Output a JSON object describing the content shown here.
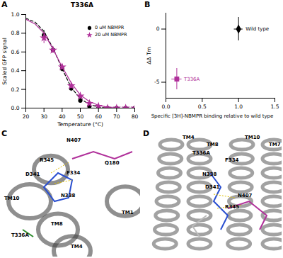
{
  "chart_data": [
    {
      "panel": "A",
      "type": "scatter",
      "title": "T336A",
      "x_label": "Temperature (°C)",
      "y_label": "Scaled GFP signal",
      "x": [
        30,
        35,
        40,
        45,
        50,
        55,
        60,
        65,
        70,
        75,
        80
      ],
      "series": [
        {
          "name": "0 uM NBMPR",
          "color": "#000000",
          "marker": "circle",
          "line_style": "dashed",
          "values": [
            0.78,
            0.62,
            0.42,
            0.21,
            0.08,
            0.02,
            0.0,
            0.0,
            0.0,
            0.0,
            0.0
          ],
          "errors": [
            0.05,
            0.03,
            0.03,
            0.03,
            0.02,
            0.01,
            0.01,
            0.01,
            0.0,
            0.0,
            0.0
          ],
          "fit_x": [
            20,
            25,
            30,
            35,
            40,
            45,
            50,
            55,
            60,
            65,
            70,
            75,
            80
          ],
          "fit": [
            0.96,
            0.92,
            0.82,
            0.64,
            0.42,
            0.22,
            0.1,
            0.04,
            0.01,
            0.0,
            0.0,
            0.0,
            0.0
          ]
        },
        {
          "name": "20 uM NBMPR",
          "color": "#b0309a",
          "marker": "star",
          "line_style": "solid",
          "values": [
            0.75,
            0.62,
            0.44,
            0.24,
            0.13,
            0.05,
            0.02,
            0.0,
            0.0,
            0.0,
            0.0
          ],
          "errors": [
            0.06,
            0.03,
            0.03,
            0.03,
            0.02,
            0.02,
            0.01,
            0.01,
            0.0,
            0.0,
            0.0
          ],
          "fit_x": [
            20,
            25,
            30,
            35,
            40,
            45,
            50,
            55,
            60,
            65,
            70,
            75,
            80
          ],
          "fit": [
            0.95,
            0.9,
            0.8,
            0.63,
            0.44,
            0.27,
            0.14,
            0.07,
            0.03,
            0.01,
            0.0,
            0.0,
            0.0
          ]
        }
      ],
      "xlim": [
        20,
        80
      ],
      "xticks": [
        20,
        30,
        40,
        50,
        60,
        70,
        80
      ],
      "ylim": [
        0,
        1
      ],
      "yticks": [
        {
          "value": 0,
          "label": "0.0"
        },
        {
          "value": 0.2,
          "label": "0.2"
        },
        {
          "value": 0.4,
          "label": "0.4"
        },
        {
          "value": 0.6,
          "label": "0.6"
        },
        {
          "value": 0.8,
          "label": "0.8"
        },
        {
          "value": 1,
          "label": "1.0"
        }
      ],
      "legend": "upper right"
    },
    {
      "panel": "B",
      "type": "scatter",
      "x_label": "Specific [3H]-NBMPR binding relative to wild type",
      "y_label": "ΔΔ Tm",
      "series": [
        {
          "name": "Wild type",
          "color": "#000000",
          "marker": "diamond",
          "x": [
            1.0
          ],
          "values": [
            0.0
          ],
          "x_errors": [
            0.06
          ],
          "errors": [
            1.1
          ]
        },
        {
          "name": "T336A",
          "color": "#b0309a",
          "marker": "square",
          "x": [
            0.15
          ],
          "values": [
            -4.7
          ],
          "x_errors": [
            0.07
          ],
          "errors": [
            1.0
          ]
        }
      ],
      "xlim": [
        0,
        1.5
      ],
      "xticks": [
        {
          "value": 0,
          "label": "0.0"
        },
        {
          "value": 0.5,
          "label": "0.5"
        },
        {
          "value": 1,
          "label": "1.0"
        },
        {
          "value": 1.5,
          "label": "1.5"
        }
      ],
      "ylim": [
        -6.5,
        1.5
      ],
      "yticks": [
        -5,
        0
      ]
    }
  ],
  "structures": [
    {
      "panel": "C",
      "labels": [
        "N407",
        "R345",
        "Q180",
        "D341",
        "F334",
        "N338",
        "TM10",
        "TM8",
        "TM1",
        "TM4",
        "T336A"
      ]
    },
    {
      "panel": "D",
      "labels": [
        "TM4",
        "TM8",
        "TM10",
        "TM7",
        "T336A",
        "F334",
        "N338",
        "D341",
        "N407",
        "R345"
      ]
    }
  ]
}
